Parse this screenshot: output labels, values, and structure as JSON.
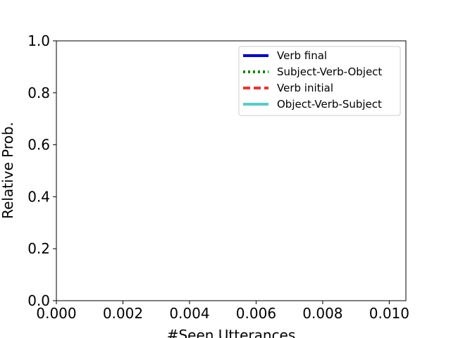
{
  "chart_data": {
    "type": "line",
    "title": "",
    "xlabel": "#Seen Utterances",
    "ylabel": "Relative Prob.",
    "xlim": [
      0.0,
      0.0105
    ],
    "ylim": [
      0.0,
      1.0
    ],
    "x_ticks": [
      "0.000",
      "0.002",
      "0.004",
      "0.006",
      "0.008",
      "0.010"
    ],
    "x_tick_values": [
      0.0,
      0.002,
      0.004,
      0.006,
      0.008,
      0.01
    ],
    "y_ticks": [
      "0.0",
      "0.2",
      "0.4",
      "0.6",
      "0.8",
      "1.0"
    ],
    "y_tick_values": [
      0.0,
      0.2,
      0.4,
      0.6,
      0.8,
      1.0
    ],
    "grid": false,
    "legend_position": "upper right",
    "series": [
      {
        "name": "Verb final",
        "color": "#0000dd",
        "style": "solid",
        "x": [],
        "y": []
      },
      {
        "name": "Subject-Verb-Object",
        "color": "#008800",
        "style": "dotted",
        "x": [],
        "y": []
      },
      {
        "name": "Verb initial",
        "color": "#ee3333",
        "style": "dashed",
        "x": [],
        "y": []
      },
      {
        "name": "Object-Verb-Subject",
        "color": "#55cccc",
        "style": "solid",
        "x": [],
        "y": []
      }
    ]
  }
}
